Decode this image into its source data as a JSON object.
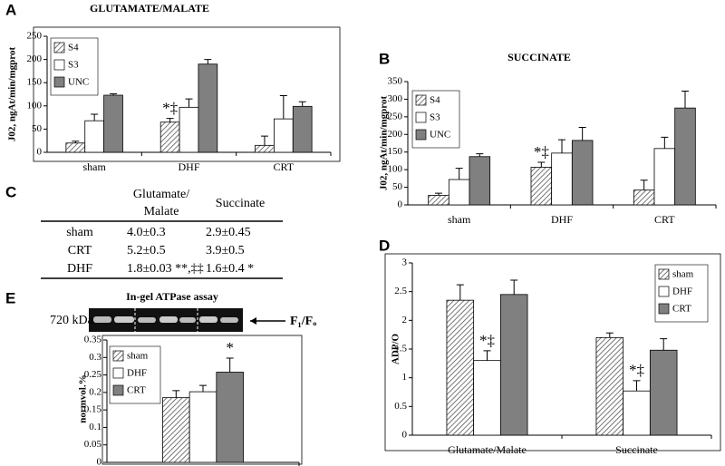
{
  "panel_labels": [
    "A",
    "B",
    "C",
    "D",
    "E"
  ],
  "chart_data": [
    {
      "type": "bar",
      "title": "GLUTAMATE/MALATE",
      "y_label": "J02, ngAt/min/mgprot",
      "categories": [
        "sham",
        "DHF",
        "CRT"
      ],
      "series": [
        {
          "name": "S4",
          "color": "#ffffff",
          "hatch": true,
          "values": [
            20,
            65,
            15
          ],
          "errors": [
            4,
            8,
            20
          ]
        },
        {
          "name": "S3",
          "color": "#ffffff",
          "values": [
            68,
            97,
            72
          ],
          "errors": [
            14,
            18,
            50
          ]
        },
        {
          "name": "UNC",
          "color": "#808080",
          "values": [
            123,
            190,
            99
          ],
          "errors": [
            3,
            10,
            10
          ]
        }
      ],
      "ylim": [
        0,
        250
      ],
      "yticks": [
        0,
        50,
        100,
        150,
        200,
        250
      ],
      "legend": "upper left",
      "annotations": [
        "*‡"
      ]
    },
    {
      "type": "bar",
      "title": "SUCCINATE",
      "y_label": "J02, ngAt/min/mgprot",
      "categories": [
        "sham",
        "DHF",
        "CRT"
      ],
      "series": [
        {
          "name": "S4",
          "color": "#ffffff",
          "hatch": true,
          "values": [
            27,
            107,
            42
          ],
          "errors": [
            6,
            14,
            28
          ]
        },
        {
          "name": "S3",
          "color": "#ffffff",
          "values": [
            72,
            147,
            160
          ],
          "errors": [
            32,
            38,
            32
          ]
        },
        {
          "name": "UNC",
          "color": "#808080",
          "values": [
            137,
            183,
            275
          ],
          "errors": [
            8,
            37,
            48
          ]
        }
      ],
      "ylim": [
        0,
        350
      ],
      "yticks": [
        0,
        50,
        100,
        150,
        200,
        250,
        300,
        350
      ],
      "legend": "upper left",
      "annotations": [
        "*‡"
      ]
    },
    {
      "type": "bar",
      "y_label": "ADP/O",
      "categories": [
        "Glutamate/Malate",
        "Succinate"
      ],
      "series": [
        {
          "name": "sham",
          "color": "#ffffff",
          "hatch": true,
          "values": [
            2.35,
            1.7
          ],
          "errors": [
            0.27,
            0.08
          ]
        },
        {
          "name": "DHF",
          "color": "#ffffff",
          "values": [
            1.3,
            0.77
          ],
          "errors": [
            0.17,
            0.18
          ]
        },
        {
          "name": "CRT",
          "color": "#808080",
          "values": [
            2.45,
            1.48
          ],
          "errors": [
            0.25,
            0.2
          ]
        }
      ],
      "ylim": [
        0,
        3
      ],
      "yticks": [
        0,
        0.5,
        1,
        1.5,
        2,
        2.5,
        3
      ],
      "legend": "upper right",
      "annotations": [
        "*‡",
        "*‡"
      ]
    },
    {
      "type": "bar",
      "title": "In-gel ATPase assay",
      "y_label": "normvol.%",
      "categories": [
        null
      ],
      "series": [
        {
          "name": "sham",
          "color": "#ffffff",
          "hatch": true,
          "values": [
            0.185
          ],
          "errors": [
            0.02
          ]
        },
        {
          "name": "DHF",
          "color": "#ffffff",
          "values": [
            0.202
          ],
          "errors": [
            0.018
          ]
        },
        {
          "name": "CRT",
          "color": "#808080",
          "values": [
            0.258
          ],
          "errors": [
            0.04
          ]
        }
      ],
      "ylim": [
        0,
        0.35
      ],
      "yticks": [
        0,
        0.05,
        0.1,
        0.15,
        0.2,
        0.25,
        0.3,
        0.35
      ],
      "legend": "upper left",
      "annotations": [
        "*"
      ],
      "gel_marker": "720 kDa",
      "gel_band": "F₁/Fₒ"
    }
  ],
  "table": {
    "columns": [
      [
        "Glutamate/",
        "Malate"
      ],
      [
        "Succinate"
      ]
    ],
    "rows": [
      [
        "sham",
        "4.0±0.3",
        "2.9±0.45"
      ],
      [
        "CRT",
        "5.2±0.5",
        "3.9±0.5"
      ],
      [
        "DHF",
        "1.8±0.03 **,‡‡",
        "1.6±0.4 *"
      ]
    ]
  }
}
